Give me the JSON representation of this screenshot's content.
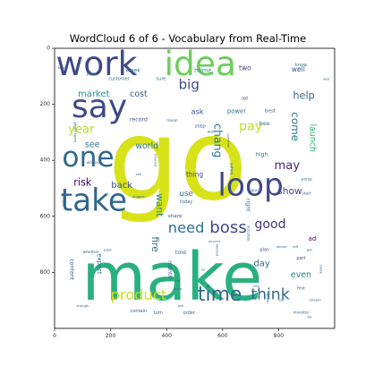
{
  "chart_data": {
    "type": "wordcloud",
    "title": "WordCloud 6 of 6 - Vocabulary from Real-Time",
    "x_ticks": [
      0,
      200,
      400,
      600,
      800
    ],
    "y_ticks": [
      0,
      200,
      400,
      600,
      800
    ],
    "xlim": [
      0,
      1000
    ],
    "ylim": [
      0,
      1000
    ],
    "grid": false,
    "legend": "none",
    "words": [
      {
        "text": "go",
        "size": 400,
        "x": 440,
        "y": 400,
        "color": "#d8e219",
        "rotate": 0
      },
      {
        "text": "make",
        "size": 235,
        "x": 420,
        "y": 820,
        "color": "#2ab07f",
        "rotate": 0
      },
      {
        "text": "work",
        "size": 120,
        "x": 150,
        "y": 55,
        "color": "#3e4a89",
        "rotate": 0
      },
      {
        "text": "idea",
        "size": 120,
        "x": 520,
        "y": 55,
        "color": "#6ccd5a",
        "rotate": 0
      },
      {
        "text": "say",
        "size": 115,
        "x": 160,
        "y": 210,
        "color": "#3e4a89",
        "rotate": 0
      },
      {
        "text": "one",
        "size": 100,
        "x": 120,
        "y": 390,
        "color": "#31688e",
        "rotate": 0
      },
      {
        "text": "take",
        "size": 110,
        "x": 140,
        "y": 545,
        "color": "#31688e",
        "rotate": 0
      },
      {
        "text": "loop",
        "size": 110,
        "x": 700,
        "y": 490,
        "color": "#3e4a89",
        "rotate": 0
      },
      {
        "text": "time",
        "size": 70,
        "x": 590,
        "y": 880,
        "color": "#31688e",
        "rotate": 0
      },
      {
        "text": "think",
        "size": 55,
        "x": 770,
        "y": 880,
        "color": "#31688e",
        "rotate": 0
      },
      {
        "text": "product",
        "size": 52,
        "x": 300,
        "y": 880,
        "color": "#c8e020",
        "rotate": 0
      },
      {
        "text": "boss",
        "size": 58,
        "x": 620,
        "y": 640,
        "color": "#3e4a89",
        "rotate": 0
      },
      {
        "text": "need",
        "size": 52,
        "x": 470,
        "y": 640,
        "color": "#2c728e",
        "rotate": 0
      },
      {
        "text": "big",
        "size": 48,
        "x": 480,
        "y": 130,
        "color": "#3e4a89",
        "rotate": 0
      },
      {
        "text": "good",
        "size": 45,
        "x": 770,
        "y": 630,
        "color": "#46327e",
        "rotate": 0
      },
      {
        "text": "may",
        "size": 42,
        "x": 830,
        "y": 420,
        "color": "#482878",
        "rotate": 0
      },
      {
        "text": "pay",
        "size": 45,
        "x": 700,
        "y": 280,
        "color": "#bddf26",
        "rotate": 0
      },
      {
        "text": "come",
        "size": 38,
        "x": 860,
        "y": 280,
        "color": "#2a788e",
        "rotate": 270
      },
      {
        "text": "year",
        "size": 42,
        "x": 95,
        "y": 290,
        "color": "#b5de2b",
        "rotate": 0
      },
      {
        "text": "risk",
        "size": 36,
        "x": 100,
        "y": 480,
        "color": "#440154",
        "rotate": 0
      },
      {
        "text": "back",
        "size": 32,
        "x": 240,
        "y": 490,
        "color": "#3b528b",
        "rotate": 0
      },
      {
        "text": "market",
        "size": 32,
        "x": 140,
        "y": 165,
        "color": "#21918c",
        "rotate": 0
      },
      {
        "text": "help",
        "size": 36,
        "x": 890,
        "y": 170,
        "color": "#31688e",
        "rotate": 0
      },
      {
        "text": "world",
        "size": 30,
        "x": 330,
        "y": 350,
        "color": "#2c728e",
        "rotate": 0
      },
      {
        "text": "see",
        "size": 30,
        "x": 135,
        "y": 345,
        "color": "#2c728e",
        "rotate": 0
      },
      {
        "text": "cost",
        "size": 30,
        "x": 300,
        "y": 165,
        "color": "#33638d",
        "rotate": 0
      },
      {
        "text": "want",
        "size": 34,
        "x": 375,
        "y": 560,
        "color": "#238a8d",
        "rotate": 270
      },
      {
        "text": "chang",
        "size": 40,
        "x": 585,
        "y": 330,
        "color": "#2a788e",
        "rotate": 270
      },
      {
        "text": "show",
        "size": 34,
        "x": 840,
        "y": 510,
        "color": "#404387",
        "rotate": 0
      },
      {
        "text": "launch",
        "size": 30,
        "x": 920,
        "y": 320,
        "color": "#35b779",
        "rotate": 270
      },
      {
        "text": "fire",
        "size": 34,
        "x": 360,
        "y": 700,
        "color": "#31688e",
        "rotate": 270
      },
      {
        "text": "use",
        "size": 28,
        "x": 470,
        "y": 520,
        "color": "#2c728e",
        "rotate": 0
      },
      {
        "text": "day",
        "size": 32,
        "x": 740,
        "y": 770,
        "color": "#2c728e",
        "rotate": 0
      },
      {
        "text": "even",
        "size": 30,
        "x": 880,
        "y": 810,
        "color": "#26828e",
        "rotate": 0
      },
      {
        "text": "ask",
        "size": 26,
        "x": 510,
        "y": 225,
        "color": "#3e4a89",
        "rotate": 0
      },
      {
        "text": "two",
        "size": 24,
        "x": 680,
        "y": 70,
        "color": "#433e85",
        "rotate": 0
      },
      {
        "text": "well",
        "size": 24,
        "x": 870,
        "y": 75,
        "color": "#3b528b",
        "rotate": 0
      },
      {
        "text": "home",
        "size": 22,
        "x": 530,
        "y": 80,
        "color": "#1f9e89",
        "rotate": 0
      },
      {
        "text": "power",
        "size": 22,
        "x": 650,
        "y": 225,
        "color": "#2c728e",
        "rotate": 0
      },
      {
        "text": "record",
        "size": 20,
        "x": 300,
        "y": 255,
        "color": "#3b528b",
        "rotate": 0
      },
      {
        "text": "week",
        "size": 20,
        "x": 280,
        "y": 80,
        "color": "#2c728e",
        "rotate": 0
      },
      {
        "text": "thing",
        "size": 24,
        "x": 500,
        "y": 450,
        "color": "#3e4a89",
        "rotate": 0
      },
      {
        "text": "expect",
        "size": 22,
        "x": 160,
        "y": 770,
        "color": "#31688e",
        "rotate": 270
      },
      {
        "text": "told",
        "size": 20,
        "x": 450,
        "y": 730,
        "color": "#31688e",
        "rotate": 0
      },
      {
        "text": "month",
        "size": 20,
        "x": 410,
        "y": 790,
        "color": "#3e4a89",
        "rotate": 270
      },
      {
        "text": "content",
        "size": 20,
        "x": 60,
        "y": 790,
        "color": "#3e4a89",
        "rotate": 270
      },
      {
        "text": "right",
        "size": 20,
        "x": 690,
        "y": 560,
        "color": "#31688e",
        "rotate": 270
      },
      {
        "text": "high",
        "size": 20,
        "x": 740,
        "y": 380,
        "color": "#2c728e",
        "rotate": 0
      },
      {
        "text": "bee",
        "size": 20,
        "x": 750,
        "y": 270,
        "color": "#2a788e",
        "rotate": 0
      },
      {
        "text": "best",
        "size": 18,
        "x": 770,
        "y": 225,
        "color": "#33638d",
        "rotate": 0
      },
      {
        "text": "lot",
        "size": 18,
        "x": 680,
        "y": 180,
        "color": "#3e4a89",
        "rotate": 0
      },
      {
        "text": "step",
        "size": 18,
        "x": 520,
        "y": 280,
        "color": "#31688e",
        "rotate": 0
      },
      {
        "text": "mean",
        "size": 14,
        "x": 420,
        "y": 260,
        "color": "#2a788e",
        "rotate": 0
      },
      {
        "text": "wait",
        "size": 14,
        "x": 560,
        "y": 300,
        "color": "#26828e",
        "rotate": 0
      },
      {
        "text": "share",
        "size": 18,
        "x": 430,
        "y": 600,
        "color": "#3b528b",
        "rotate": 0
      },
      {
        "text": "today",
        "size": 16,
        "x": 470,
        "y": 550,
        "color": "#31688e",
        "rotate": 0
      },
      {
        "text": "plan",
        "size": 16,
        "x": 750,
        "y": 720,
        "color": "#3b528b",
        "rotate": 0
      },
      {
        "text": "part",
        "size": 16,
        "x": 880,
        "y": 750,
        "color": "#3b528b",
        "rotate": 0
      },
      {
        "text": "ad",
        "size": 22,
        "x": 920,
        "y": 680,
        "color": "#440154",
        "rotate": 0
      },
      {
        "text": "start",
        "size": 14,
        "x": 900,
        "y": 520,
        "color": "#31688e",
        "rotate": 0
      },
      {
        "text": "first",
        "size": 14,
        "x": 880,
        "y": 860,
        "color": "#3e4a89",
        "rotate": 0
      },
      {
        "text": "customer",
        "size": 16,
        "x": 230,
        "y": 110,
        "color": "#31688e",
        "rotate": 0
      },
      {
        "text": "line",
        "size": 18,
        "x": 130,
        "y": 95,
        "color": "#2a788e",
        "rotate": 0
      },
      {
        "text": "sure",
        "size": 16,
        "x": 380,
        "y": 110,
        "color": "#2c728e",
        "rotate": 0
      },
      {
        "text": "know",
        "size": 16,
        "x": 880,
        "y": 60,
        "color": "#2c728e",
        "rotate": 0
      },
      {
        "text": "short term",
        "size": 14,
        "x": 70,
        "y": 300,
        "color": "#31688e",
        "rotate": 270
      },
      {
        "text": "whether",
        "size": 14,
        "x": 130,
        "y": 730,
        "color": "#31688e",
        "rotate": 0
      },
      {
        "text": "contain",
        "size": 16,
        "x": 300,
        "y": 940,
        "color": "#31688e",
        "rotate": 0
      },
      {
        "text": "turn",
        "size": 16,
        "x": 370,
        "y": 945,
        "color": "#3b528b",
        "rotate": 0
      },
      {
        "text": "order",
        "size": 16,
        "x": 480,
        "y": 945,
        "color": "#31688e",
        "rotate": 0
      },
      {
        "text": "investor",
        "size": 14,
        "x": 880,
        "y": 945,
        "color": "#31688e",
        "rotate": 0
      },
      {
        "text": "success",
        "size": 14,
        "x": 690,
        "y": 660,
        "color": "#31688e",
        "rotate": 270
      },
      {
        "text": "quick",
        "size": 14,
        "x": 720,
        "y": 510,
        "color": "#31688e",
        "rotate": 0
      },
      {
        "text": "persp",
        "size": 14,
        "x": 900,
        "y": 470,
        "color": "#31688e",
        "rotate": 0
      },
      {
        "text": "yahoo",
        "size": 14,
        "x": 630,
        "y": 430,
        "color": "#31688e",
        "rotate": 270
      },
      {
        "text": "without",
        "size": 14,
        "x": 140,
        "y": 410,
        "color": "#31688e",
        "rotate": 0
      },
      {
        "text": "biggest",
        "size": 12,
        "x": 300,
        "y": 530,
        "color": "#31688e",
        "rotate": 0
      },
      {
        "text": "still",
        "size": 12,
        "x": 300,
        "y": 450,
        "color": "#31688e",
        "rotate": 0
      },
      {
        "text": "left",
        "size": 12,
        "x": 860,
        "y": 710,
        "color": "#31688e",
        "rotate": 0
      },
      {
        "text": "got",
        "size": 12,
        "x": 910,
        "y": 720,
        "color": "#31688e",
        "rotate": 0
      },
      {
        "text": "phone",
        "size": 12,
        "x": 810,
        "y": 710,
        "color": "#31688e",
        "rotate": 0
      },
      {
        "text": "happen",
        "size": 12,
        "x": 760,
        "y": 890,
        "color": "#31688e",
        "rotate": 270
      },
      {
        "text": "set",
        "size": 12,
        "x": 440,
        "y": 830,
        "color": "#31688e",
        "rotate": 0
      },
      {
        "text": "keep",
        "size": 12,
        "x": 440,
        "y": 860,
        "color": "#31688e",
        "rotate": 0
      },
      {
        "text": "enough",
        "size": 12,
        "x": 100,
        "y": 920,
        "color": "#31688e",
        "rotate": 0
      },
      {
        "text": "better",
        "size": 12,
        "x": 30,
        "y": 70,
        "color": "#31688e",
        "rotate": 0
      },
      {
        "text": "put",
        "size": 12,
        "x": 450,
        "y": 920,
        "color": "#31688e",
        "rotate": 0
      },
      {
        "text": "accord",
        "size": 12,
        "x": 570,
        "y": 690,
        "color": "#31688e",
        "rotate": 0
      },
      {
        "text": "stream",
        "size": 12,
        "x": 930,
        "y": 900,
        "color": "#31688e",
        "rotate": 0
      },
      {
        "text": "interest",
        "size": 12,
        "x": 360,
        "y": 400,
        "color": "#31688e",
        "rotate": 270
      },
      {
        "text": "question",
        "size": 12,
        "x": 620,
        "y": 330,
        "color": "#31688e",
        "rotate": 270
      },
      {
        "text": "public",
        "size": 10,
        "x": 190,
        "y": 720,
        "color": "#31688e",
        "rotate": 0
      },
      {
        "text": "plastic",
        "size": 10,
        "x": 950,
        "y": 790,
        "color": "#31688e",
        "rotate": 270
      },
      {
        "text": "mish",
        "size": 10,
        "x": 810,
        "y": 900,
        "color": "#31688e",
        "rotate": 0
      },
      {
        "text": "fell",
        "size": 10,
        "x": 910,
        "y": 960,
        "color": "#31688e",
        "rotate": 0
      },
      {
        "text": "critic",
        "size": 10,
        "x": 720,
        "y": 850,
        "color": "#31688e",
        "rotate": 0
      },
      {
        "text": "blackout",
        "size": 10,
        "x": 580,
        "y": 720,
        "color": "#31688e",
        "rotate": 270
      },
      {
        "text": "approach",
        "size": 10,
        "x": 30,
        "y": 540,
        "color": "#31688e",
        "rotate": 270
      },
      {
        "text": "wast",
        "size": 10,
        "x": 970,
        "y": 110,
        "color": "#31688e",
        "rotate": 0
      },
      {
        "text": "us",
        "size": 12,
        "x": 530,
        "y": 790,
        "color": "#31688e",
        "rotate": 0
      }
    ]
  }
}
